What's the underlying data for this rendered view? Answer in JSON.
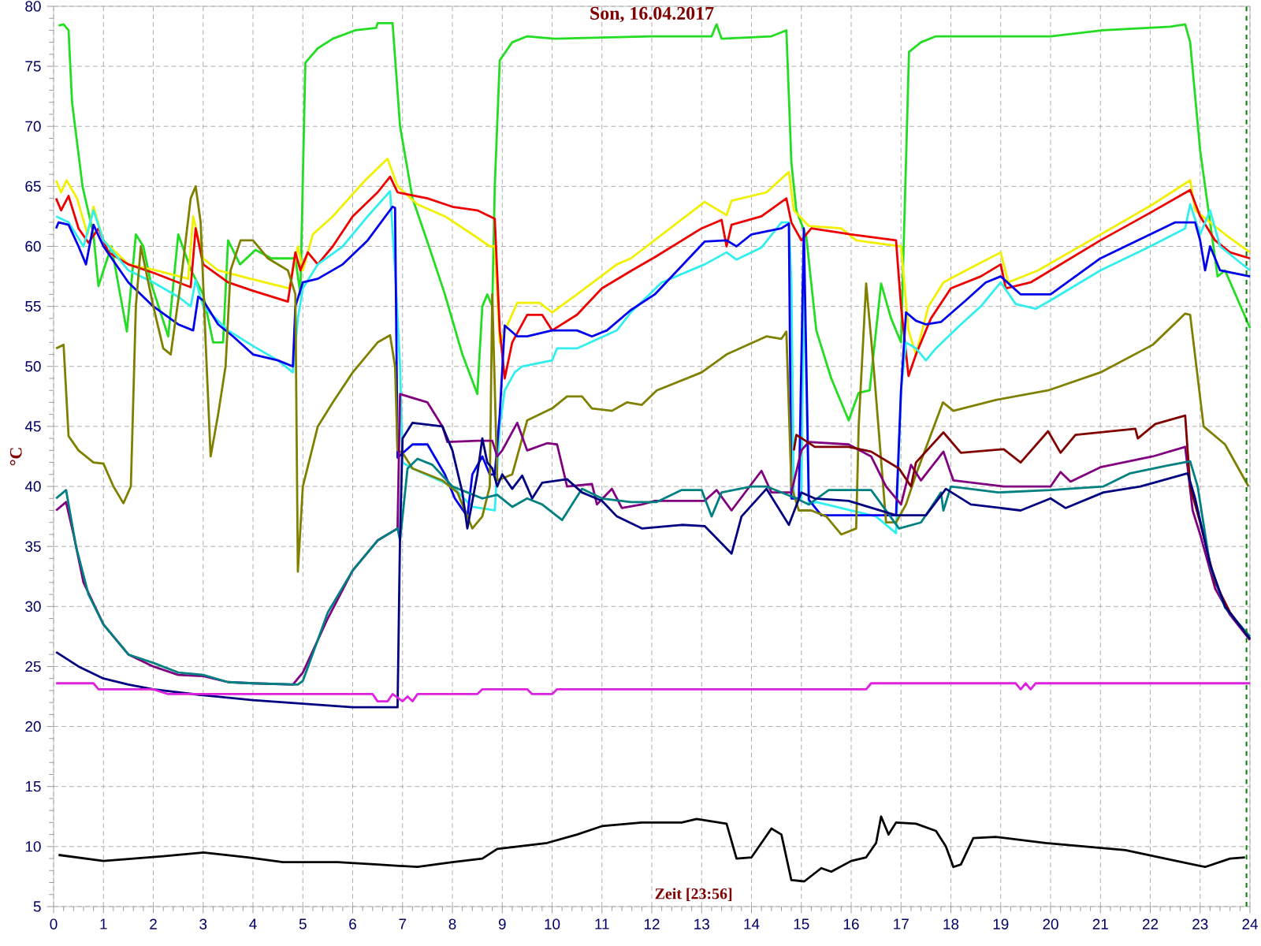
{
  "chart_data": {
    "type": "line",
    "title": "Son, 16.04.2017",
    "xlabel": "Zeit [23:56]",
    "ylabel": "°C",
    "xlim": [
      0,
      24
    ],
    "ylim": [
      5,
      80
    ],
    "xticks": [
      0,
      1,
      2,
      3,
      4,
      5,
      6,
      7,
      8,
      9,
      10,
      11,
      12,
      13,
      14,
      15,
      16,
      17,
      18,
      19,
      20,
      21,
      22,
      23,
      24
    ],
    "yticks": [
      5,
      10,
      15,
      20,
      25,
      30,
      35,
      40,
      45,
      50,
      55,
      60,
      65,
      70,
      75,
      80
    ],
    "grid": true,
    "marker": "none",
    "line_style": "solid",
    "ref_lines": [
      {
        "axis": "x",
        "value": 23.93,
        "color": "#008000",
        "line_style": "dashed"
      }
    ],
    "series": [
      {
        "color": "#22dd22",
        "x": [
          0.1,
          0.2,
          0.3,
          0.37,
          0.58,
          0.8,
          0.9,
          1.0,
          1.16,
          1.47,
          1.65,
          1.8,
          1.95,
          2.3,
          2.5,
          2.76,
          3.0,
          3.2,
          3.4,
          3.5,
          3.74,
          4.05,
          4.37,
          4.6,
          4.85,
          4.95,
          5.05,
          5.3,
          5.6,
          6.05,
          6.47,
          6.5,
          6.8,
          6.95,
          7.2,
          7.53,
          7.85,
          8.2,
          8.5,
          8.6,
          8.7,
          8.8,
          8.85,
          8.95,
          9.2,
          9.5,
          10.05,
          12.0,
          13.2,
          13.3,
          13.4,
          14.4,
          14.7,
          14.8,
          14.9,
          15.1,
          15.3,
          15.6,
          15.95,
          16.15,
          16.37,
          16.6,
          16.8,
          17.0,
          17.16,
          17.4,
          17.7,
          20.0,
          21.05,
          22.4,
          22.7,
          22.8,
          23.0,
          23.2,
          23.35,
          23.5,
          24.0
        ],
        "values": [
          78.4,
          78.5,
          78,
          72,
          65,
          61,
          56.7,
          58,
          60,
          52.9,
          61,
          60,
          57,
          52.5,
          61,
          58,
          56,
          52,
          52,
          60.5,
          58.5,
          59.7,
          59,
          59,
          59,
          56,
          75.3,
          76.5,
          77.3,
          78,
          78.2,
          78.6,
          78.6,
          70,
          64,
          60,
          56,
          51,
          47.7,
          55,
          56,
          55,
          65,
          75.5,
          77,
          77.5,
          77.3,
          77.5,
          77.5,
          78.5,
          77.3,
          77.5,
          78,
          67,
          63,
          60.8,
          53,
          49,
          45.5,
          47.8,
          48,
          56.9,
          54,
          52,
          76.2,
          77,
          77.5,
          77.5,
          78,
          78.3,
          78.5,
          77,
          68,
          62,
          57.5,
          58,
          53.2
        ]
      },
      {
        "color": "#f0f000",
        "x": [
          0.05,
          0.15,
          0.26,
          0.47,
          0.68,
          0.8,
          1.0,
          1.5,
          2.05,
          2.7,
          2.8,
          3.0,
          3.3,
          3.95,
          4.73,
          4.9,
          5.0,
          5.2,
          5.6,
          6.25,
          6.7,
          6.9,
          7.3,
          7.85,
          8.4,
          8.75,
          8.85,
          8.95,
          9.3,
          9.75,
          10.0,
          10.5,
          11.3,
          11.58,
          13.06,
          13.5,
          13.6,
          14.3,
          14.75,
          14.85,
          15.15,
          15.8,
          16.1,
          17.0,
          17.15,
          17.3,
          17.55,
          17.85,
          18.3,
          19.0,
          19.15,
          19.75,
          20.8,
          22.05,
          22.8,
          22.9,
          23.5,
          24.0
        ],
        "values": [
          65.5,
          64.5,
          65.5,
          64,
          61,
          63.3,
          60.5,
          58.5,
          58,
          57.3,
          62.5,
          59,
          58,
          57.3,
          56.5,
          60,
          58,
          61,
          62.5,
          65.5,
          67.3,
          65,
          63.5,
          62.5,
          61,
          60,
          60,
          52,
          55.3,
          55.3,
          54.5,
          56,
          58.5,
          59,
          63.7,
          62.6,
          63.8,
          64.5,
          66.2,
          63,
          61.7,
          61.5,
          60.5,
          60,
          53,
          51,
          55,
          57,
          58,
          59.5,
          57,
          58,
          60.5,
          63.5,
          65.5,
          63,
          61,
          59.5
        ]
      },
      {
        "color": "#ee0000",
        "x": [
          0.05,
          0.15,
          0.3,
          0.5,
          0.7,
          0.9,
          1.1,
          1.5,
          2.0,
          2.5,
          2.75,
          2.85,
          3.0,
          3.5,
          4.0,
          4.7,
          4.85,
          4.95,
          5.1,
          5.3,
          5.6,
          6.0,
          6.5,
          6.75,
          6.9,
          7.5,
          8.0,
          8.5,
          8.85,
          8.95,
          9.05,
          9.2,
          9.5,
          9.8,
          10.0,
          10.5,
          11.0,
          11.6,
          12.06,
          13.0,
          13.4,
          13.5,
          13.6,
          14.2,
          14.7,
          14.8,
          15.0,
          15.2,
          16.0,
          16.9,
          17.0,
          17.15,
          17.3,
          17.6,
          18.0,
          18.6,
          19.0,
          19.1,
          19.6,
          20.0,
          21.0,
          22.0,
          22.8,
          23.0,
          23.3,
          23.6,
          24.0
        ],
        "values": [
          64,
          63,
          64.2,
          61.5,
          60.3,
          61.5,
          59.5,
          58.5,
          57.8,
          57,
          56.6,
          61.5,
          58.5,
          57,
          56.3,
          55.4,
          59.5,
          58,
          59.5,
          58.5,
          60,
          62.5,
          64.5,
          65.8,
          64.5,
          64,
          63.3,
          63,
          62.3,
          53,
          49,
          52,
          54.3,
          54.3,
          53,
          54.3,
          56.5,
          58,
          59.1,
          61.5,
          62.2,
          60,
          61.8,
          62.5,
          64,
          62,
          60.5,
          61.5,
          61,
          60.5,
          55,
          49.2,
          51,
          54,
          56.5,
          57.5,
          58.5,
          56.5,
          57,
          58,
          60.5,
          62.8,
          64.7,
          62.5,
          60.5,
          59.5,
          59
        ]
      },
      {
        "color": "#33eeee",
        "x": [
          0.05,
          0.3,
          0.6,
          0.8,
          1.0,
          1.5,
          2.0,
          2.5,
          2.75,
          2.85,
          3.0,
          3.5,
          4.0,
          4.5,
          4.8,
          4.9,
          5.0,
          5.3,
          5.8,
          6.3,
          6.75,
          6.85,
          6.95,
          7.0,
          7.2,
          8.0,
          8.4,
          8.85,
          8.95,
          9.05,
          9.25,
          9.4,
          10.0,
          10.1,
          10.5,
          11.3,
          11.58,
          12.2,
          13.06,
          13.5,
          13.7,
          14.2,
          14.6,
          14.75,
          14.8,
          14.85,
          15.0,
          15.05,
          15.15,
          15.3,
          16.5,
          16.9,
          17.0,
          17.1,
          17.3,
          17.5,
          17.7,
          18.2,
          18.6,
          19.0,
          19.3,
          19.7,
          20.0,
          21.0,
          22.0,
          22.7,
          22.8,
          23.0,
          23.2,
          23.4,
          24.0
        ],
        "values": [
          62.5,
          62,
          60,
          63,
          60.5,
          58,
          57,
          55.8,
          55,
          57.2,
          55,
          53,
          51.7,
          50.5,
          49.5,
          54,
          56.5,
          58.5,
          60,
          62.5,
          64.6,
          58,
          50,
          42,
          41.5,
          40,
          38.3,
          38,
          45,
          48,
          49.5,
          50,
          50.5,
          51.5,
          51.5,
          53,
          54.5,
          57,
          58.5,
          59.5,
          58.9,
          59.9,
          62,
          62,
          57,
          39,
          39,
          58,
          38.5,
          38.7,
          37.5,
          36.1,
          48,
          52,
          51.5,
          50.5,
          51.5,
          53.5,
          55,
          57,
          55.2,
          54.8,
          55.5,
          58,
          60,
          61.5,
          63.5,
          61,
          63,
          60,
          58
        ]
      },
      {
        "color": "#0000ee",
        "x": [
          0.05,
          0.1,
          0.3,
          0.5,
          0.65,
          0.8,
          1.0,
          1.5,
          2.0,
          2.5,
          2.8,
          2.9,
          3.0,
          3.3,
          3.6,
          4.0,
          4.5,
          4.8,
          4.85,
          5.0,
          5.3,
          5.8,
          6.3,
          6.8,
          6.85,
          6.9,
          7.2,
          7.5,
          7.85,
          8.05,
          8.3,
          8.4,
          8.6,
          8.75,
          8.85,
          8.95,
          9.05,
          9.3,
          9.5,
          10.0,
          10.5,
          10.8,
          11.1,
          11.58,
          12.06,
          13.06,
          13.5,
          13.7,
          14.0,
          14.6,
          14.75,
          14.8,
          14.95,
          15.05,
          15.15,
          15.4,
          16.9,
          17.0,
          17.1,
          17.3,
          17.5,
          17.8,
          18.3,
          18.7,
          19.0,
          19.4,
          20.0,
          21.0,
          22.0,
          22.5,
          22.9,
          23.0,
          23.1,
          23.2,
          23.4,
          24.0
        ],
        "values": [
          61.5,
          62,
          61.8,
          60,
          58.5,
          61.8,
          60,
          57,
          55,
          53.5,
          53,
          55.8,
          55.5,
          53.5,
          52.5,
          51,
          50.5,
          50,
          55,
          57,
          57.3,
          58.5,
          60.5,
          63.3,
          63.2,
          42.4,
          43.5,
          43.5,
          41,
          39,
          37.5,
          41,
          42.5,
          41,
          41,
          46,
          53.4,
          52.5,
          52.5,
          53,
          53,
          52.5,
          53,
          54.7,
          56,
          60.4,
          60.5,
          60,
          61,
          61.5,
          61.9,
          39,
          39,
          61.5,
          38.9,
          37.6,
          37.6,
          48,
          54.5,
          53.8,
          53.5,
          53.7,
          55.5,
          57,
          57.5,
          56,
          56,
          59,
          61,
          62,
          62,
          60.5,
          58,
          60,
          58,
          57.5
        ]
      },
      {
        "color": "#808000",
        "x": [
          0.05,
          0.2,
          0.3,
          0.5,
          0.8,
          1.0,
          1.2,
          1.4,
          1.55,
          1.65,
          1.75,
          1.85,
          2.0,
          2.2,
          2.35,
          2.55,
          2.75,
          2.85,
          2.95,
          3.05,
          3.15,
          3.3,
          3.45,
          3.55,
          3.75,
          4.0,
          4.3,
          4.7,
          4.85,
          4.9,
          5.0,
          5.3,
          5.6,
          6.0,
          6.5,
          6.75,
          6.85,
          6.9,
          7.0,
          7.2,
          7.5,
          7.8,
          8.1,
          8.3,
          8.4,
          8.6,
          8.75,
          8.8,
          8.9,
          9.2,
          9.5,
          10.0,
          10.3,
          10.6,
          10.8,
          11.2,
          11.5,
          11.8,
          12.1,
          13.0,
          13.5,
          14.3,
          14.6,
          14.7,
          14.8,
          14.95,
          15.2,
          15.5,
          15.8,
          16.1,
          16.15,
          16.3,
          16.45,
          16.7,
          16.9,
          17.1,
          17.3,
          17.84,
          18.05,
          18.9,
          19.95,
          21.0,
          22.05,
          22.7,
          22.8,
          23.07,
          23.5,
          23.97
        ],
        "values": [
          51.5,
          51.8,
          44.2,
          43,
          42,
          41.9,
          40,
          38.6,
          40,
          55,
          60,
          58,
          55,
          51.5,
          51,
          57,
          64,
          65,
          62,
          52,
          42.5,
          46,
          50,
          58,
          60.5,
          60.5,
          59,
          58,
          56,
          32.9,
          40,
          45,
          47,
          49.5,
          52,
          52.6,
          50,
          43,
          42.8,
          41.5,
          41,
          40.5,
          39.5,
          37.5,
          36.5,
          37.5,
          40,
          56,
          40.5,
          41,
          45.5,
          46.5,
          47.5,
          47.5,
          46.5,
          46.3,
          47,
          46.8,
          48,
          49.5,
          51,
          52.5,
          52.3,
          52.9,
          40,
          38,
          38,
          37.5,
          36,
          36.5,
          45,
          56.9,
          50,
          37,
          37,
          38.5,
          41,
          47,
          46.3,
          47.2,
          48,
          49.5,
          51.8,
          54.4,
          54.3,
          45,
          43.5,
          40
        ]
      },
      {
        "color": "#800080",
        "x": [
          0.05,
          0.25,
          0.4,
          0.6,
          1.0,
          1.5,
          2.0,
          2.5,
          3.0,
          3.5,
          4.0,
          4.8,
          5.0,
          5.5,
          6.0,
          6.5,
          6.9,
          6.95,
          7.5,
          7.8,
          7.9,
          8.5,
          8.8,
          8.9,
          9.0,
          9.3,
          9.5,
          9.9,
          10.1,
          10.3,
          10.8,
          10.9,
          11.2,
          11.4,
          11.8,
          12.06,
          13.06,
          13.3,
          13.6,
          14.2,
          14.4,
          14.8,
          15.0,
          15.15,
          15.95,
          16.4,
          16.7,
          17.0,
          17.2,
          17.4,
          17.85,
          18.05,
          19.06,
          20.0,
          20.2,
          20.4,
          21.0,
          22.05,
          22.7,
          22.85,
          23.0,
          23.3,
          23.6,
          24.0
        ],
        "values": [
          38,
          38.7,
          36,
          32,
          28.5,
          26,
          25,
          24.3,
          24.2,
          23.7,
          23.6,
          23.5,
          24.5,
          29,
          33,
          35.5,
          36.5,
          47.7,
          47,
          45,
          43.7,
          43.8,
          43.8,
          42.5,
          43,
          45.3,
          43,
          43.6,
          43.5,
          40,
          40.2,
          38.5,
          39.8,
          38.2,
          38.5,
          38.8,
          38.8,
          39.7,
          38,
          41.3,
          39.5,
          39.5,
          43,
          43.7,
          43.5,
          42.5,
          40,
          38.5,
          41.8,
          40.5,
          42.9,
          40.5,
          40,
          40,
          41.2,
          40.4,
          41.6,
          42.5,
          43.3,
          38,
          36,
          31.5,
          29.3,
          27.2
        ]
      },
      {
        "color": "#800000",
        "x": [
          14.85,
          14.9,
          15.27,
          15.95,
          16.4,
          16.96,
          17.2,
          17.3,
          17.85,
          18.2,
          19.06,
          19.4,
          19.95,
          20.2,
          20.5,
          21.7,
          21.75,
          22.1,
          22.7,
          22.8,
          23.0,
          23.3,
          23.6,
          24.0
        ],
        "values": [
          43,
          44.3,
          43.3,
          43.3,
          42.9,
          41.5,
          40,
          42,
          44.5,
          42.8,
          43.1,
          42,
          44.6,
          42.8,
          44.3,
          44.8,
          44,
          45.2,
          45.9,
          40,
          37,
          32,
          29.5,
          27.3
        ]
      },
      {
        "color": "#008080",
        "x": [
          0.05,
          0.25,
          0.45,
          0.7,
          1.0,
          1.5,
          2.0,
          2.5,
          3.0,
          3.5,
          4.0,
          4.9,
          5.0,
          5.5,
          6.0,
          6.5,
          6.9,
          6.95,
          7.1,
          7.3,
          7.6,
          8.0,
          8.3,
          8.6,
          8.9,
          9.2,
          9.5,
          9.8,
          10.2,
          10.6,
          11.0,
          11.58,
          12.1,
          12.6,
          13.0,
          13.2,
          13.4,
          14.0,
          14.3,
          14.9,
          15.15,
          15.55,
          16.4,
          16.96,
          17.4,
          17.8,
          17.85,
          18.0,
          18.95,
          20.0,
          21.06,
          21.6,
          22.3,
          22.8,
          22.95,
          23.2,
          23.5,
          24.0
        ],
        "values": [
          39,
          39.7,
          35,
          31,
          28.5,
          26,
          25.3,
          24.5,
          24.3,
          23.7,
          23.6,
          23.5,
          23.8,
          29.5,
          33,
          35.5,
          36.5,
          35.5,
          41.5,
          42.3,
          41.8,
          40,
          39.5,
          39,
          39.3,
          38.3,
          39,
          38.5,
          37.2,
          39.8,
          39,
          38.7,
          38.7,
          39.7,
          39.7,
          37.5,
          39.5,
          40,
          40,
          39,
          38.5,
          39.7,
          39.7,
          36.5,
          37,
          39.5,
          38,
          40,
          39.5,
          39.7,
          40,
          41.1,
          41.7,
          42.1,
          40,
          33.4,
          29.9,
          27.5
        ]
      },
      {
        "color": "#000080",
        "x": [
          0.05,
          0.5,
          1.0,
          1.5,
          2.0,
          3.0,
          4.0,
          5.0,
          6.0,
          6.9,
          6.95,
          7.0,
          7.2,
          7.8,
          8.0,
          8.2,
          8.3,
          8.5,
          8.6,
          8.7,
          8.8,
          8.9,
          9.0,
          9.2,
          9.4,
          9.6,
          9.8,
          10.3,
          10.6,
          11.0,
          11.3,
          11.8,
          12.6,
          13.06,
          13.6,
          13.8,
          14.3,
          14.75,
          15.0,
          15.27,
          15.95,
          16.9,
          17.5,
          17.9,
          18.4,
          19.4,
          20.0,
          20.3,
          21.06,
          21.8,
          22.75,
          22.9,
          23.2,
          23.5,
          24.0
        ],
        "values": [
          26.2,
          25,
          24,
          23.5,
          23.1,
          22.6,
          22.2,
          21.9,
          21.6,
          21.6,
          36,
          44,
          45.3,
          45,
          43,
          39.5,
          36.5,
          41,
          44,
          42,
          41.5,
          40,
          41,
          39.8,
          40.9,
          39,
          40.3,
          40.6,
          39.5,
          38.8,
          37.5,
          36.5,
          36.8,
          36.7,
          34.4,
          37.5,
          39.8,
          36.8,
          39.5,
          39,
          38.8,
          37.6,
          37.6,
          39.8,
          38.5,
          38,
          39,
          38.2,
          39.5,
          40,
          41.1,
          39,
          33.5,
          30,
          27.3
        ]
      },
      {
        "color": "#e020e0",
        "x": [
          0.05,
          0.8,
          0.9,
          2.0,
          2.3,
          4.0,
          6.4,
          6.5,
          6.7,
          6.8,
          7.0,
          7.1,
          7.2,
          7.3,
          8.5,
          8.6,
          9.5,
          9.6,
          10.0,
          10.1,
          16.3,
          16.4,
          19.3,
          19.4,
          19.5,
          19.6,
          19.7,
          24.0
        ],
        "values": [
          23.6,
          23.6,
          23.1,
          23.1,
          22.7,
          22.7,
          22.7,
          22.1,
          22.1,
          22.7,
          22.1,
          22.5,
          22.1,
          22.7,
          22.7,
          23.1,
          23.1,
          22.7,
          22.7,
          23.1,
          23.1,
          23.6,
          23.6,
          23.1,
          23.6,
          23.1,
          23.6,
          23.6
        ]
      },
      {
        "color": "#000000",
        "x": [
          0.1,
          1.0,
          2.2,
          3.0,
          3.9,
          4.6,
          5.7,
          6.5,
          7.3,
          8.0,
          8.6,
          8.9,
          9.9,
          10.5,
          11.0,
          11.8,
          12.6,
          12.9,
          13.5,
          13.7,
          14.0,
          14.4,
          14.6,
          14.8,
          15.06,
          15.4,
          15.6,
          16.0,
          16.3,
          16.5,
          16.6,
          16.75,
          16.9,
          17.3,
          17.7,
          17.9,
          18.05,
          18.2,
          18.45,
          18.9,
          19.9,
          20.7,
          21.5,
          22.3,
          23.1,
          23.6,
          23.9
        ],
        "values": [
          9.3,
          8.8,
          9.2,
          9.5,
          9.1,
          8.7,
          8.7,
          8.5,
          8.3,
          8.7,
          9,
          9.8,
          10.3,
          11,
          11.7,
          12,
          12,
          12.3,
          11.9,
          9,
          9.1,
          11.5,
          11,
          7.2,
          7.1,
          8.2,
          7.9,
          8.8,
          9.1,
          10.3,
          12.5,
          11,
          12,
          11.9,
          11.3,
          10,
          8.3,
          8.5,
          10.7,
          10.8,
          10.3,
          10,
          9.7,
          9,
          8.3,
          9,
          9.1
        ]
      }
    ]
  }
}
